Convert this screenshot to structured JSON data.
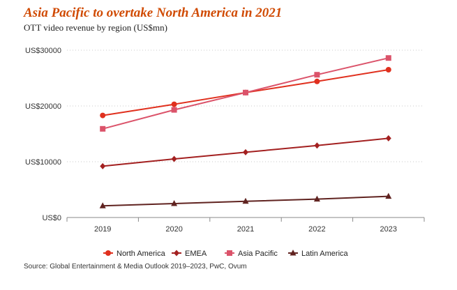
{
  "chart_data": {
    "type": "line",
    "title": "Asia Pacific to overtake North America in 2021",
    "subtitle": "OTT video revenue by region (US$mn)",
    "xlabel": "",
    "ylabel": "",
    "categories": [
      "2019",
      "2020",
      "2021",
      "2022",
      "2023"
    ],
    "ylim": [
      0,
      30000
    ],
    "yticks": [
      0,
      10000,
      20000,
      30000
    ],
    "ytick_labels": [
      "US$0",
      "US$10000",
      "US$20000",
      "US$30000"
    ],
    "grid": "horizontal-dotted",
    "legend_position": "bottom",
    "series": [
      {
        "name": "North America",
        "marker": "circle",
        "color": "#e0301e",
        "values": [
          18300,
          20300,
          22400,
          24400,
          26500
        ]
      },
      {
        "name": "EMEA",
        "marker": "diamond",
        "color": "#a32020",
        "values": [
          9200,
          10500,
          11700,
          12900,
          14200
        ]
      },
      {
        "name": "Asia Pacific",
        "marker": "square",
        "color": "#db536a",
        "values": [
          15900,
          19300,
          22400,
          25600,
          28600
        ]
      },
      {
        "name": "Latin America",
        "marker": "triangle",
        "color": "#602320",
        "values": [
          2100,
          2500,
          2900,
          3300,
          3800
        ]
      }
    ],
    "source": "Source: Global Entertainment & Media Outlook 2019–2023, PwC, Ovum"
  }
}
